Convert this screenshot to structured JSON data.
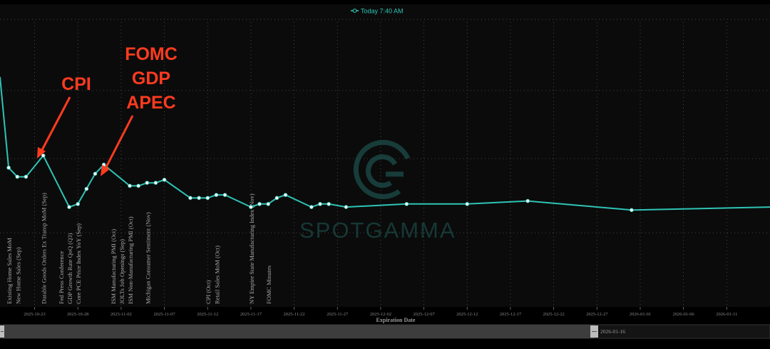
{
  "legend": {
    "icon": "line-marker-icon",
    "label": "Today 7:40 AM",
    "color": "#2ec4b6"
  },
  "watermark": "SPOTGAMMA",
  "chart_data": {
    "type": "line",
    "xlabel": "Expiration Date",
    "ylabel": "",
    "x_ticks": [
      "2025-10-23",
      "2025-10-28",
      "2025-11-02",
      "2025-11-07",
      "2025-11-12",
      "2025-11-17",
      "2025-11-22",
      "2025-11-27",
      "2025-12-02",
      "2025-12-07",
      "2025-12-12",
      "2025-12-17",
      "2025-12-22",
      "2025-12-27",
      "2026-01-01",
      "2026-01-06",
      "2026-01-11"
    ],
    "x_range": [
      "2025-10-19",
      "2026-01-16"
    ],
    "y_range": [
      0,
      1
    ],
    "grid": true,
    "series": [
      {
        "name": "Today 7:40 AM",
        "color": "#2ec4b6",
        "points": [
          [
            "2025-10-19",
            0.76
          ],
          [
            "2025-10-20",
            0.46
          ],
          [
            "2025-10-21",
            0.43
          ],
          [
            "2025-10-22",
            0.43
          ],
          [
            "2025-10-24",
            0.5
          ],
          [
            "2025-10-27",
            0.33
          ],
          [
            "2025-10-28",
            0.34
          ],
          [
            "2025-10-29",
            0.39
          ],
          [
            "2025-10-30",
            0.44
          ],
          [
            "2025-10-31",
            0.47
          ],
          [
            "2025-11-03",
            0.4
          ],
          [
            "2025-11-04",
            0.4
          ],
          [
            "2025-11-05",
            0.41
          ],
          [
            "2025-11-06",
            0.41
          ],
          [
            "2025-11-07",
            0.42
          ],
          [
            "2025-11-10",
            0.36
          ],
          [
            "2025-11-11",
            0.36
          ],
          [
            "2025-11-12",
            0.36
          ],
          [
            "2025-11-13",
            0.37
          ],
          [
            "2025-11-14",
            0.37
          ],
          [
            "2025-11-17",
            0.33
          ],
          [
            "2025-11-18",
            0.34
          ],
          [
            "2025-11-19",
            0.34
          ],
          [
            "2025-11-20",
            0.36
          ],
          [
            "2025-11-21",
            0.37
          ],
          [
            "2025-11-24",
            0.33
          ],
          [
            "2025-11-25",
            0.34
          ],
          [
            "2025-11-26",
            0.34
          ],
          [
            "2025-11-28",
            0.33
          ],
          [
            "2025-12-05",
            0.34
          ],
          [
            "2025-12-12",
            0.34
          ],
          [
            "2025-12-19",
            0.35
          ],
          [
            "2025-12-31",
            0.32
          ],
          [
            "2026-01-16",
            0.33
          ]
        ]
      }
    ],
    "events": [
      {
        "date": "2025-10-20",
        "label": "Existing Home Sales MoM"
      },
      {
        "date": "2025-10-21",
        "label": "New Home Sales (Sep)"
      },
      {
        "date": "2025-10-24",
        "label": "Durable Goods Orders Ex Transp MoM (Sep)"
      },
      {
        "date": "2025-10-26",
        "label": "Fed Press Conference"
      },
      {
        "date": "2025-10-27",
        "label": "GDP Growth Rate QoQ (Q3)"
      },
      {
        "date": "2025-10-28",
        "label": "Core PCE Price Index YoY (Sep)"
      },
      {
        "date": "2025-11-01",
        "label": "ISM Manufacturing PMI (Oct)"
      },
      {
        "date": "2025-11-02",
        "label": "JOLTs Job Openings (Sep)"
      },
      {
        "date": "2025-11-03",
        "label": "ISM Non-Manufacturing PMI (Oct)"
      },
      {
        "date": "2025-11-05",
        "label": "Michigan Consumer Sentiment (Nov)"
      },
      {
        "date": "2025-11-12",
        "label": "CPI (Oct)"
      },
      {
        "date": "2025-11-13",
        "label": "Retail Sales MoM (Oct)"
      },
      {
        "date": "2025-11-17",
        "label": "NY Empire State Manufacturing Index (Nov)"
      },
      {
        "date": "2025-11-19",
        "label": "FOMC Minutes"
      }
    ],
    "annotations": [
      {
        "lines": [
          "CPI"
        ],
        "target": "2025-10-23"
      },
      {
        "lines": [
          "FOMC",
          "GDP",
          "APEC"
        ],
        "target": "2025-10-30"
      }
    ]
  },
  "range_selector": {
    "end_label": "2026-01-16"
  }
}
